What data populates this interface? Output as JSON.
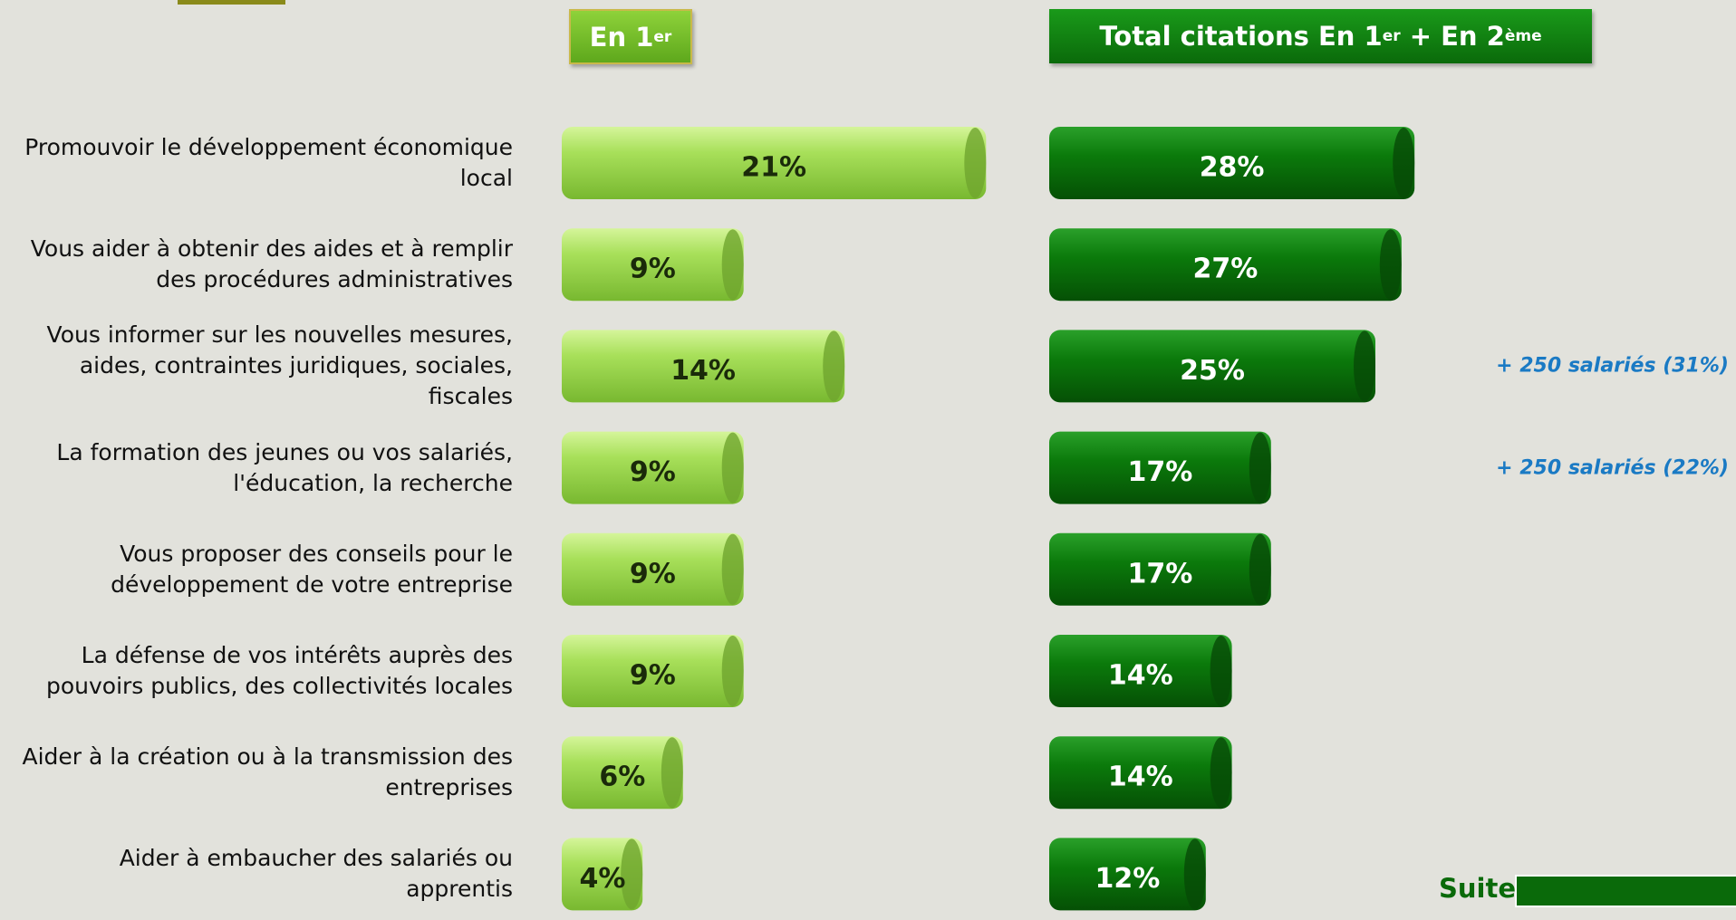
{
  "page": {
    "suite": "Suite"
  },
  "chart_data": [
    {
      "type": "bar",
      "orientation": "horizontal",
      "title": [
        "En 1",
        "er"
      ],
      "categories": [
        "Promouvoir le développement économique local",
        "Vous aider à obtenir des aides et à remplir des procédures administratives",
        "Vous informer sur les nouvelles mesures, aides, contraintes juridiques, sociales, fiscales",
        "La formation des jeunes ou vos salariés, l'éducation, la recherche",
        "Vous proposer des conseils pour le développement de votre entreprise",
        "La défense de vos intérêts auprès des pouvoirs publics, des collectivités locales",
        "Aider à la création ou à la transmission des entreprises",
        "Aider à embaucher des salariés ou apprentis"
      ],
      "values": [
        21,
        9,
        14,
        9,
        9,
        9,
        6,
        4
      ],
      "value_labels": [
        "21%",
        "9%",
        "14%",
        "9%",
        "9%",
        "9%",
        "6%",
        "4%"
      ],
      "color": "#9bd64a"
    },
    {
      "type": "bar",
      "orientation": "horizontal",
      "title": [
        "Total citations En 1",
        "er",
        " + En 2",
        "ème"
      ],
      "values": [
        28,
        27,
        25,
        17,
        17,
        14,
        14,
        12
      ],
      "value_labels": [
        "28%",
        "27%",
        "25%",
        "17%",
        "17%",
        "14%",
        "14%",
        "12%"
      ],
      "annotations": [
        null,
        null,
        "+ 250 salariés (31%)",
        "+ 250 salariés (22%)",
        null,
        null,
        null,
        null
      ],
      "color": "#0a7a0a"
    }
  ]
}
